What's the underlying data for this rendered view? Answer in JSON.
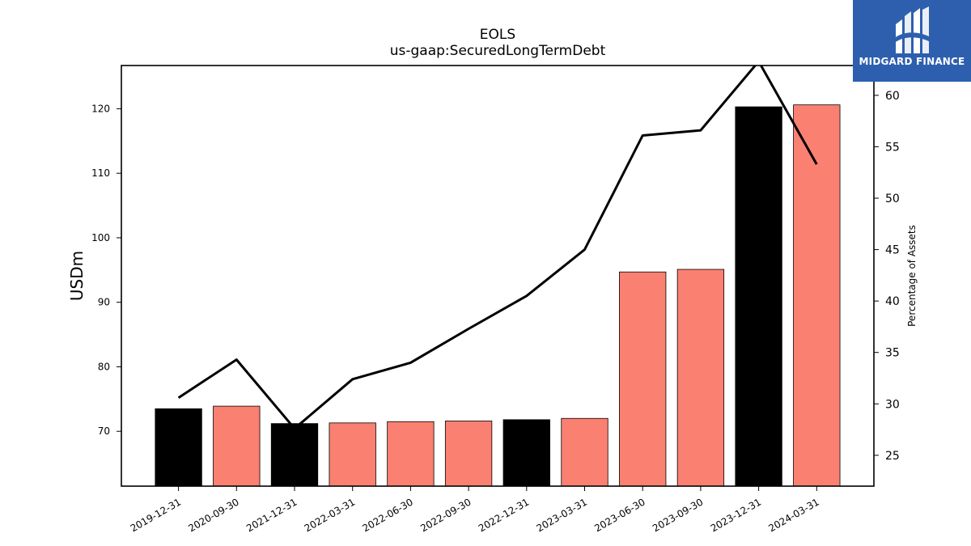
{
  "chart_data": {
    "type": "bar",
    "title": "EOLS",
    "subtitle": "us-gaap:SecuredLongTermDebt",
    "ylabel": "USDm",
    "y2label": "Percentage of Assets",
    "categories": [
      "2019-12-31",
      "2020-09-30",
      "2021-12-31",
      "2022-03-31",
      "2022-06-30",
      "2022-09-30",
      "2022-12-31",
      "2023-03-31",
      "2023-06-30",
      "2023-09-30",
      "2023-12-31",
      "2024-03-31"
    ],
    "bar_values": [
      73.5,
      73.9,
      71.2,
      71.3,
      71.5,
      71.6,
      71.8,
      72.0,
      94.7,
      95.1,
      120.3,
      120.6
    ],
    "bar_colors": [
      "#000000",
      "#fa8072",
      "#000000",
      "#fa8072",
      "#fa8072",
      "#fa8072",
      "#000000",
      "#fa8072",
      "#fa8072",
      "#fa8072",
      "#000000",
      "#fa8072"
    ],
    "line_values": [
      30.6,
      34.3,
      27.6,
      32.4,
      34.0,
      37.3,
      40.5,
      45.0,
      56.1,
      56.6,
      63.3,
      53.3
    ],
    "line_color": "#000000",
    "ylim": [
      61.5,
      126.7
    ],
    "y2lim": [
      22.0,
      62.9
    ],
    "yticks": [
      70,
      80,
      90,
      100,
      110,
      120
    ],
    "y2ticks": [
      25,
      30,
      35,
      40,
      45,
      50,
      55,
      60
    ],
    "grid": false,
    "legend": "none"
  },
  "logo": {
    "text": "MIDGARD FINANCE",
    "icon": "midgard-logo-icon",
    "color": "#2d5fae"
  }
}
